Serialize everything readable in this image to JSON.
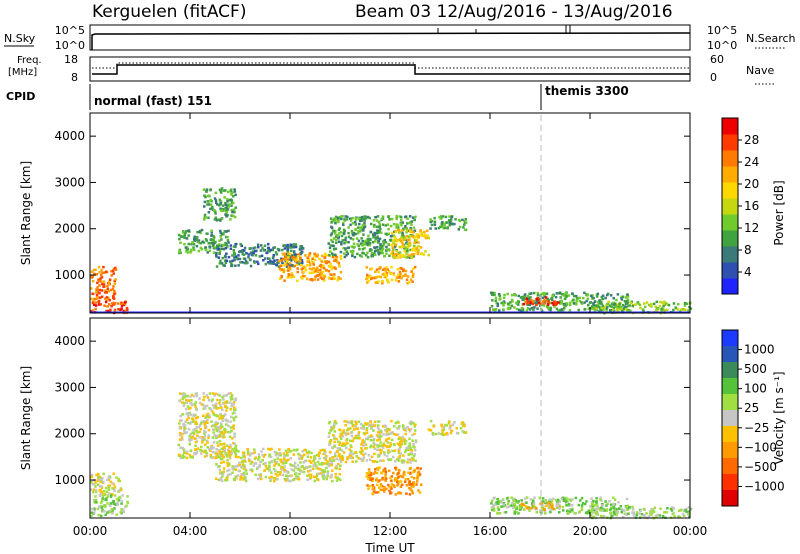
{
  "header": {
    "radar": "Kerguelen (fitACF)",
    "beam_info": "Beam 03 12/Aug/2016 - 13/Aug/2016"
  },
  "panels": {
    "nsky": {
      "left_label": "N.Sky",
      "right_label": "N.Search",
      "left_ticks": [
        "10^5",
        "10^0"
      ],
      "right_ticks": [
        "10^5",
        "10^0"
      ]
    },
    "freq": {
      "left_label_1": "Freq.",
      "left_label_2": "[MHz]",
      "right_label": "Nave",
      "left_ticks": [
        "18",
        "8"
      ],
      "right_ticks": [
        "60",
        "0"
      ]
    },
    "cpid": {
      "label": "CPID",
      "modes": [
        "normal (fast) 151",
        "themis 3300"
      ],
      "mode_change_hour": 18.0
    }
  },
  "colors": {
    "scale": [
      "#1f23ff",
      "#2e50b0",
      "#3a7a78",
      "#41a33f",
      "#6fcc2c",
      "#c5d80f",
      "#ffd800",
      "#ffab00",
      "#ff7a00",
      "#ff3b00",
      "#ee0000"
    ],
    "velocity_scale": [
      "#1c3bff",
      "#2856b8",
      "#3a8a5a",
      "#55c23a",
      "#9fdf42",
      "#c6c6c6",
      "#ffc000",
      "#ff9a00",
      "#ff6a00",
      "#ff3000",
      "#e00000"
    ]
  },
  "chart_data": [
    {
      "type": "heatmap",
      "name": "power",
      "ylabel": "Slant Range [km]",
      "ylim": [
        180,
        4500
      ],
      "yticks": [
        1000,
        2000,
        3000,
        4000
      ],
      "xlim": [
        0,
        24
      ],
      "xticks": [
        "00:00",
        "04:00",
        "08:00",
        "12:00",
        "16:00",
        "20:00",
        "00:00"
      ],
      "colorbar": {
        "label": "Power [dB]",
        "range": [
          0,
          32
        ],
        "ticks": [
          "4",
          "8",
          "12",
          "16",
          "20",
          "24",
          "28"
        ]
      },
      "ground_scatter_range": 190,
      "regions": [
        {
          "t0": 0.0,
          "t1": 1.0,
          "r0": 450,
          "r1": 1200,
          "level": 8
        },
        {
          "t0": 0.0,
          "t1": 1.5,
          "r0": 200,
          "r1": 450,
          "level": 9
        },
        {
          "t0": 3.5,
          "t1": 5.5,
          "r0": 1500,
          "r1": 2000,
          "level": 3
        },
        {
          "t0": 4.5,
          "t1": 5.8,
          "r0": 2200,
          "r1": 2900,
          "level": 3
        },
        {
          "t0": 5.0,
          "t1": 8.5,
          "r0": 1200,
          "r1": 1700,
          "level": 2
        },
        {
          "t0": 7.5,
          "t1": 10.0,
          "r0": 900,
          "r1": 1500,
          "level": 7
        },
        {
          "t0": 9.5,
          "t1": 13.0,
          "r0": 1400,
          "r1": 2300,
          "level": 3
        },
        {
          "t0": 11.0,
          "t1": 13.0,
          "r0": 850,
          "r1": 1200,
          "level": 7
        },
        {
          "t0": 12.0,
          "t1": 13.5,
          "r0": 1400,
          "r1": 2000,
          "level": 6
        },
        {
          "t0": 13.5,
          "t1": 15.0,
          "r0": 2000,
          "r1": 2300,
          "level": 3
        },
        {
          "t0": 16.0,
          "t1": 21.5,
          "r0": 250,
          "r1": 650,
          "level": 3
        },
        {
          "t0": 17.2,
          "t1": 18.8,
          "r0": 380,
          "r1": 550,
          "level": 9
        },
        {
          "t0": 20.0,
          "t1": 24.0,
          "r0": 200,
          "r1": 450,
          "level": 4
        }
      ]
    },
    {
      "type": "heatmap",
      "name": "velocity",
      "ylabel": "Slant Range [km]",
      "xlabel": "Time UT",
      "ylim": [
        180,
        4500
      ],
      "yticks": [
        1000,
        2000,
        3000,
        4000
      ],
      "xlim": [
        0,
        24
      ],
      "xticks": [
        "00:00",
        "04:00",
        "08:00",
        "12:00",
        "16:00",
        "20:00",
        "00:00"
      ],
      "colorbar": {
        "label": "Velocity [m s⁻¹]",
        "ticks": [
          "1000",
          "500",
          "100",
          "25",
          "-25",
          "-100",
          "-500",
          "-1000"
        ]
      },
      "regions": [
        {
          "t0": 0.0,
          "t1": 1.2,
          "r0": 700,
          "r1": 1200,
          "level": 5
        },
        {
          "t0": 0.0,
          "t1": 1.5,
          "r0": 250,
          "r1": 700,
          "level": 4
        },
        {
          "t0": 3.5,
          "t1": 5.8,
          "r0": 1500,
          "r1": 2900,
          "level": 5
        },
        {
          "t0": 5.0,
          "t1": 10.0,
          "r0": 1000,
          "r1": 1700,
          "level": 5
        },
        {
          "t0": 9.5,
          "t1": 13.0,
          "r0": 1400,
          "r1": 2300,
          "level": 5
        },
        {
          "t0": 11.0,
          "t1": 13.2,
          "r0": 700,
          "r1": 1300,
          "level": 7
        },
        {
          "t0": 13.5,
          "t1": 15.0,
          "r0": 2000,
          "r1": 2300,
          "level": 5
        },
        {
          "t0": 16.0,
          "t1": 21.5,
          "r0": 300,
          "r1": 650,
          "level": 4
        },
        {
          "t0": 17.2,
          "t1": 18.8,
          "r0": 380,
          "r1": 550,
          "level": 6
        },
        {
          "t0": 20.0,
          "t1": 24.0,
          "r0": 200,
          "r1": 450,
          "level": 4
        }
      ]
    }
  ]
}
